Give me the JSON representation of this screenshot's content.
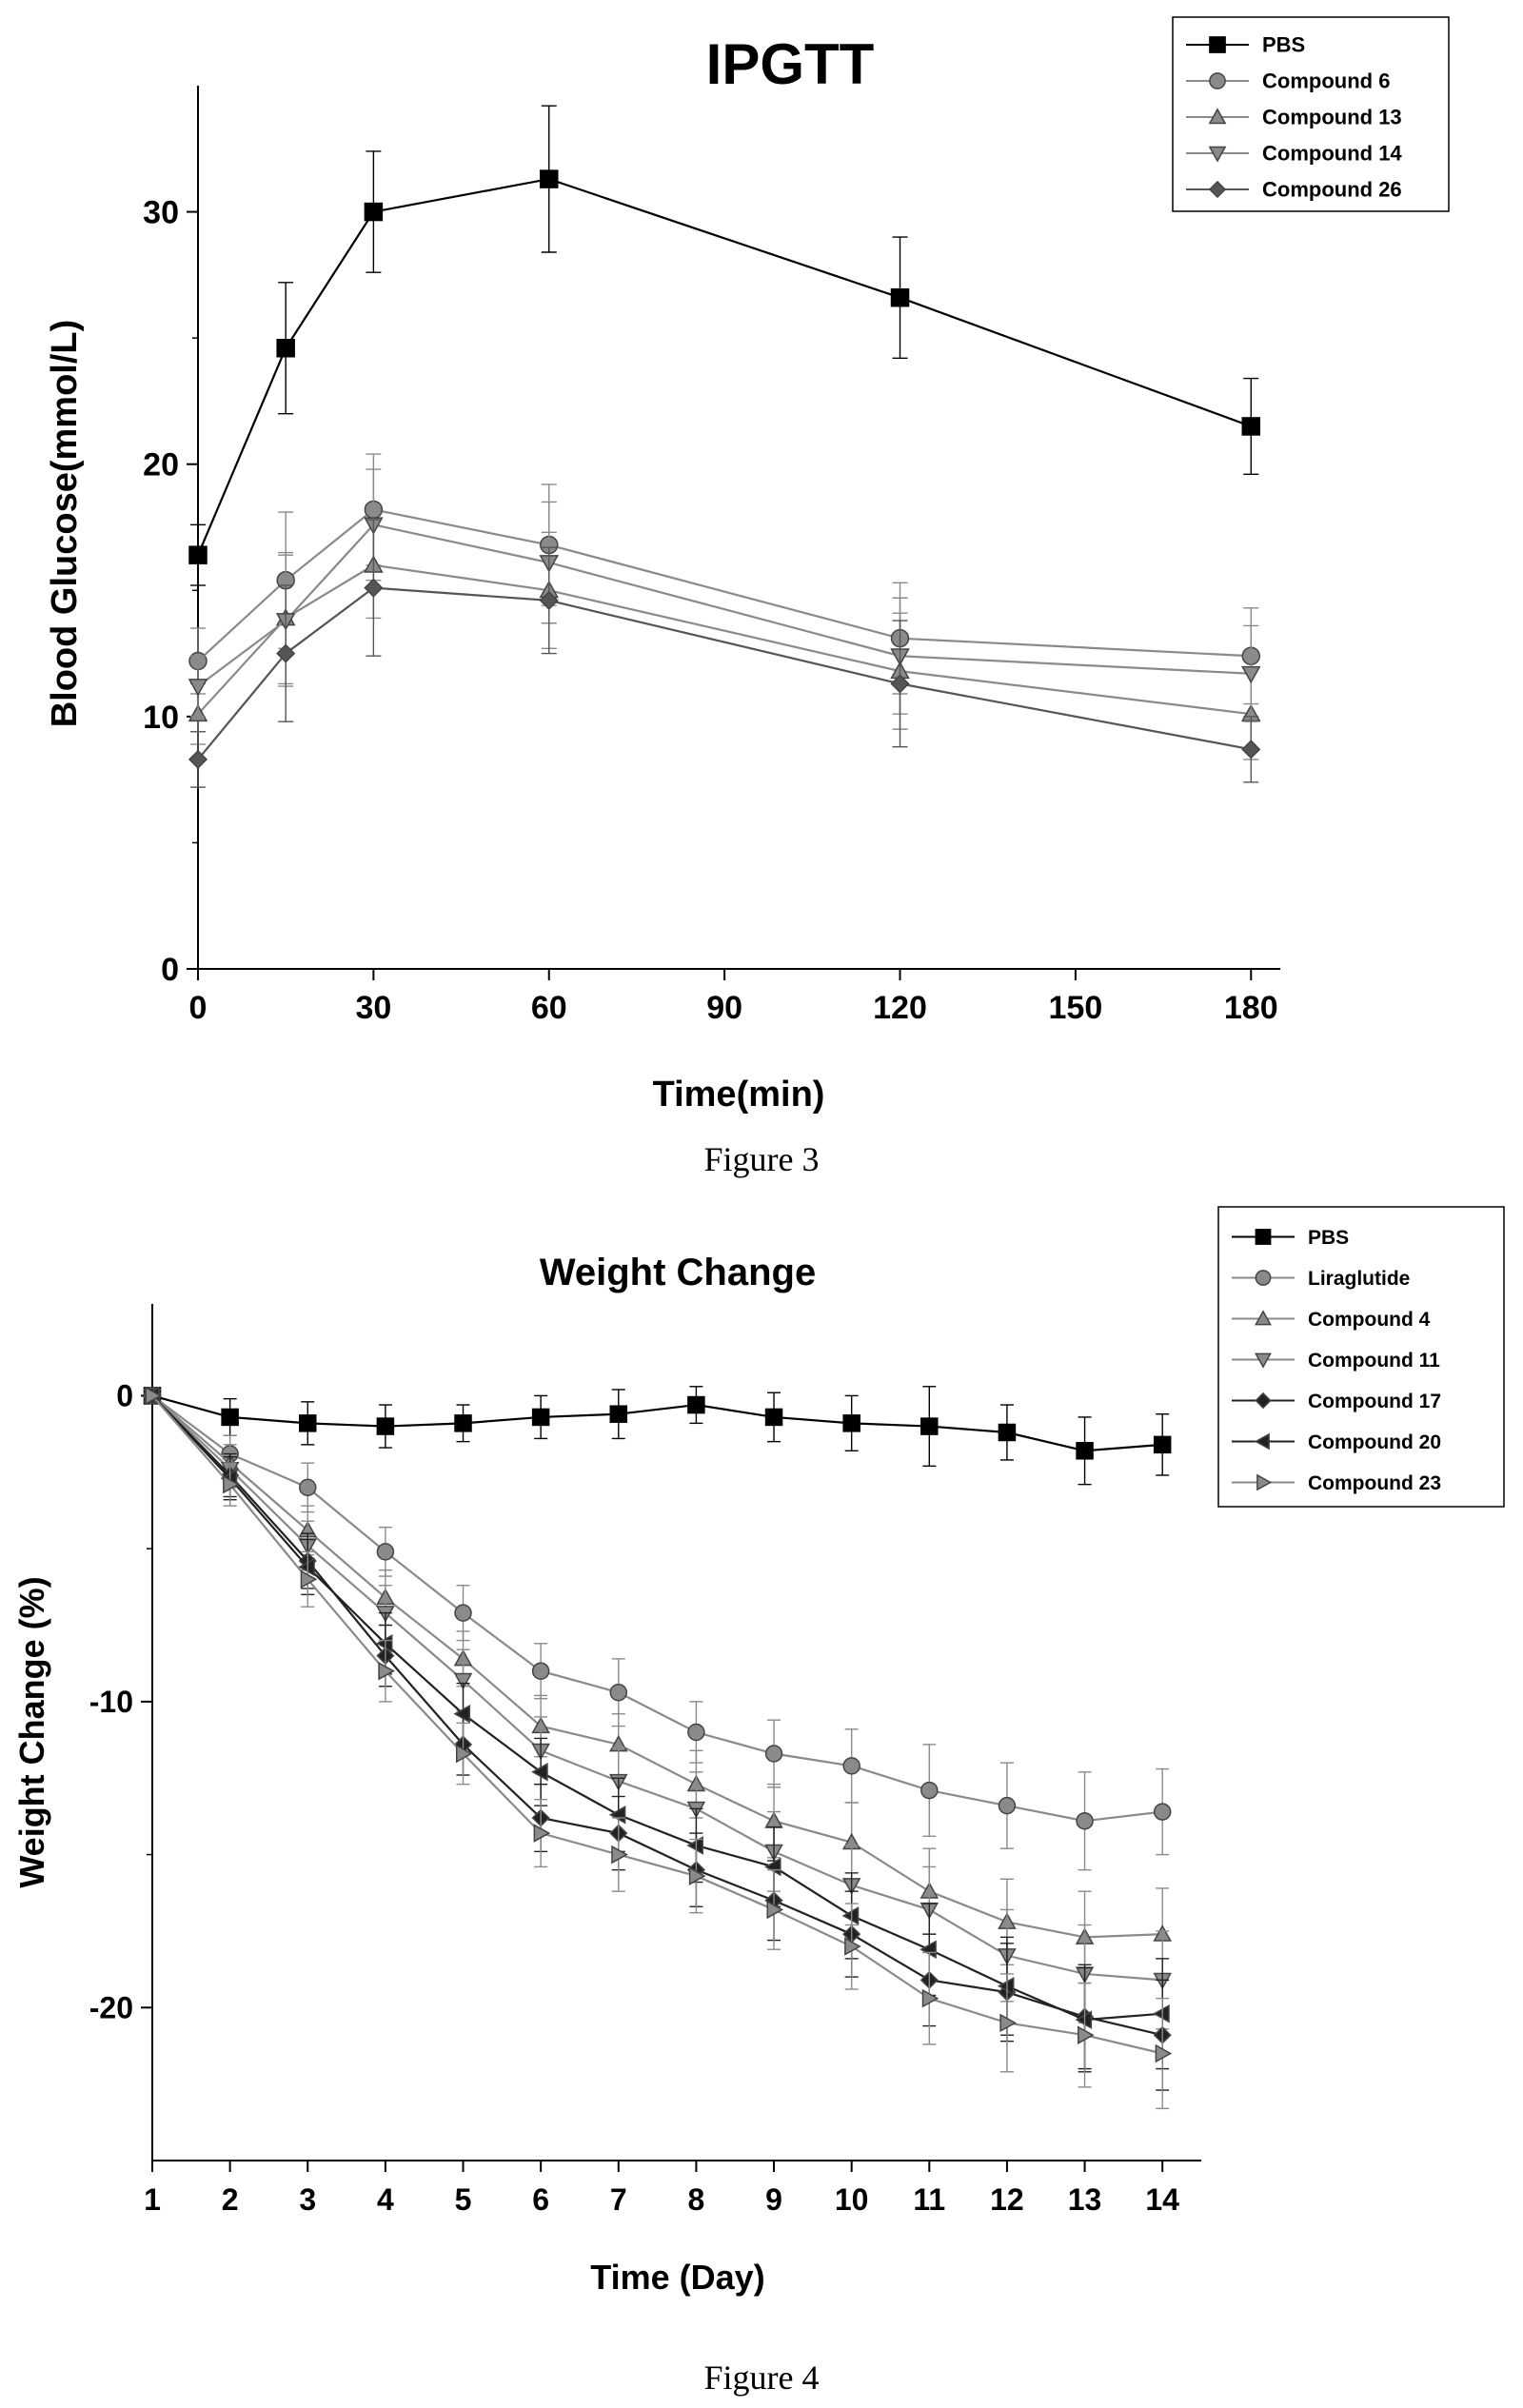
{
  "figures": [
    {
      "caption": "Figure 3",
      "chart_data": {
        "type": "line",
        "title": "IPGTT",
        "xlabel": "Time(min)",
        "ylabel": "Blood Glucose(mmol/L)",
        "xlim": [
          0,
          185
        ],
        "ylim": [
          0,
          35
        ],
        "xticks": [
          0,
          30,
          60,
          90,
          120,
          150,
          180
        ],
        "yticks": [
          0,
          10,
          20,
          30
        ],
        "grid": false,
        "legend_position": "top-right",
        "x": [
          0,
          15,
          30,
          60,
          120,
          180
        ],
        "series": [
          {
            "name": "PBS",
            "marker": "square",
            "color": "#000000",
            "values": [
              16.4,
              24.6,
              30.0,
              31.3,
              26.6,
              21.5
            ],
            "errors": [
              1.2,
              2.6,
              2.4,
              2.9,
              2.4,
              1.9
            ]
          },
          {
            "name": "Compound 6",
            "marker": "circle",
            "color": "#8a8a8a",
            "values": [
              12.2,
              15.4,
              18.2,
              16.8,
              13.1,
              12.4
            ],
            "errors": [
              1.3,
              2.7,
              2.2,
              2.4,
              2.2,
              1.9
            ]
          },
          {
            "name": "Compound 13",
            "marker": "triangle-up",
            "color": "#8a8a8a",
            "values": [
              10.1,
              13.9,
              16.0,
              15.0,
              11.8,
              10.1
            ],
            "errors": [
              1.2,
              2.6,
              2.1,
              2.3,
              2.3,
              1.8
            ]
          },
          {
            "name": "Compound 14",
            "marker": "triangle-down",
            "color": "#8a8a8a",
            "values": [
              11.2,
              13.8,
              17.6,
              16.1,
              12.4,
              11.7
            ],
            "errors": [
              1.2,
              2.6,
              2.2,
              2.4,
              2.3,
              1.9
            ]
          },
          {
            "name": "Compound 26",
            "marker": "diamond",
            "color": "#555555",
            "values": [
              8.3,
              12.5,
              15.1,
              14.6,
              11.3,
              8.7
            ],
            "errors": [
              1.1,
              2.7,
              2.7,
              2.1,
              2.5,
              1.3
            ]
          }
        ]
      }
    },
    {
      "caption": "Figure 4",
      "chart_data": {
        "type": "line",
        "title": "Weight Change",
        "xlabel": "Time (Day)",
        "ylabel": "Weight Change (%)",
        "xlim": [
          1,
          14.5
        ],
        "ylim": [
          -25,
          3
        ],
        "xticks": [
          1,
          2,
          3,
          4,
          5,
          6,
          7,
          8,
          9,
          10,
          11,
          12,
          13,
          14
        ],
        "yticks": [
          -20,
          -10,
          0
        ],
        "grid": false,
        "legend_position": "top-right",
        "x": [
          1,
          2,
          3,
          4,
          5,
          6,
          7,
          8,
          9,
          10,
          11,
          12,
          13,
          14
        ],
        "series": [
          {
            "name": "PBS",
            "marker": "square",
            "color": "#000000",
            "values": [
              0,
              -0.7,
              -0.9,
              -1.0,
              -0.9,
              -0.7,
              -0.6,
              -0.3,
              -0.7,
              -0.9,
              -1.0,
              -1.2,
              -1.8,
              -1.6
            ],
            "errors": [
              0,
              0.6,
              0.7,
              0.7,
              0.6,
              0.7,
              0.8,
              0.6,
              0.8,
              0.9,
              1.3,
              0.9,
              1.1,
              1.0
            ]
          },
          {
            "name": "Liraglutide",
            "marker": "circle",
            "color": "#8a8a8a",
            "values": [
              0,
              -1.9,
              -3.0,
              -5.1,
              -7.1,
              -9.0,
              -9.7,
              -11.0,
              -11.7,
              -12.1,
              -12.9,
              -13.4,
              -13.9,
              -13.6
            ],
            "errors": [
              0,
              0.6,
              0.8,
              0.8,
              0.9,
              0.9,
              1.1,
              1.0,
              1.1,
              1.2,
              1.5,
              1.4,
              1.6,
              1.4
            ]
          },
          {
            "name": "Compound 4",
            "marker": "triangle-up",
            "color": "#8a8a8a",
            "values": [
              0,
              -2.2,
              -4.4,
              -6.6,
              -8.6,
              -10.8,
              -11.4,
              -12.7,
              -13.9,
              -14.6,
              -16.2,
              -17.2,
              -17.7,
              -17.6
            ],
            "errors": [
              0,
              0.6,
              0.8,
              0.9,
              0.9,
              1.0,
              1.0,
              1.1,
              1.2,
              1.3,
              1.4,
              1.4,
              1.5,
              1.5
            ]
          },
          {
            "name": "Compound 11",
            "marker": "triangle-down",
            "color": "#8a8a8a",
            "values": [
              0,
              -2.4,
              -4.9,
              -7.1,
              -9.3,
              -11.6,
              -12.6,
              -13.5,
              -14.9,
              -16.0,
              -16.8,
              -18.3,
              -18.9,
              -19.1
            ],
            "errors": [
              0,
              0.6,
              0.8,
              0.9,
              1.0,
              1.1,
              1.1,
              1.2,
              1.3,
              1.3,
              1.4,
              1.5,
              1.6,
              1.6
            ]
          },
          {
            "name": "Compound 17",
            "marker": "diamond",
            "color": "#222222",
            "values": [
              0,
              -2.6,
              -5.4,
              -8.5,
              -11.4,
              -13.8,
              -14.3,
              -15.5,
              -16.5,
              -17.6,
              -19.1,
              -19.5,
              -20.3,
              -20.9
            ],
            "errors": [
              0,
              0.7,
              0.9,
              1.0,
              1.0,
              1.1,
              1.2,
              1.2,
              1.3,
              1.4,
              1.5,
              1.6,
              1.7,
              1.8
            ]
          },
          {
            "name": "Compound 20",
            "marker": "triangle-left",
            "color": "#222222",
            "values": [
              0,
              -2.7,
              -5.6,
              -8.1,
              -10.4,
              -12.3,
              -13.7,
              -14.7,
              -15.4,
              -17.0,
              -18.1,
              -19.3,
              -20.4,
              -20.2
            ],
            "errors": [
              0,
              0.7,
              0.9,
              1.0,
              1.0,
              1.1,
              1.2,
              1.2,
              1.3,
              1.4,
              1.5,
              1.6,
              1.7,
              1.8
            ]
          },
          {
            "name": "Compound 23",
            "marker": "triangle-right",
            "color": "#8a8a8a",
            "values": [
              0,
              -2.9,
              -6.0,
              -9.0,
              -11.7,
              -14.3,
              -15.0,
              -15.7,
              -16.8,
              -18.0,
              -19.7,
              -20.5,
              -20.9,
              -21.5
            ],
            "errors": [
              0,
              0.7,
              0.9,
              1.0,
              1.0,
              1.1,
              1.2,
              1.2,
              1.3,
              1.4,
              1.5,
              1.6,
              1.7,
              1.8
            ]
          }
        ]
      }
    }
  ]
}
